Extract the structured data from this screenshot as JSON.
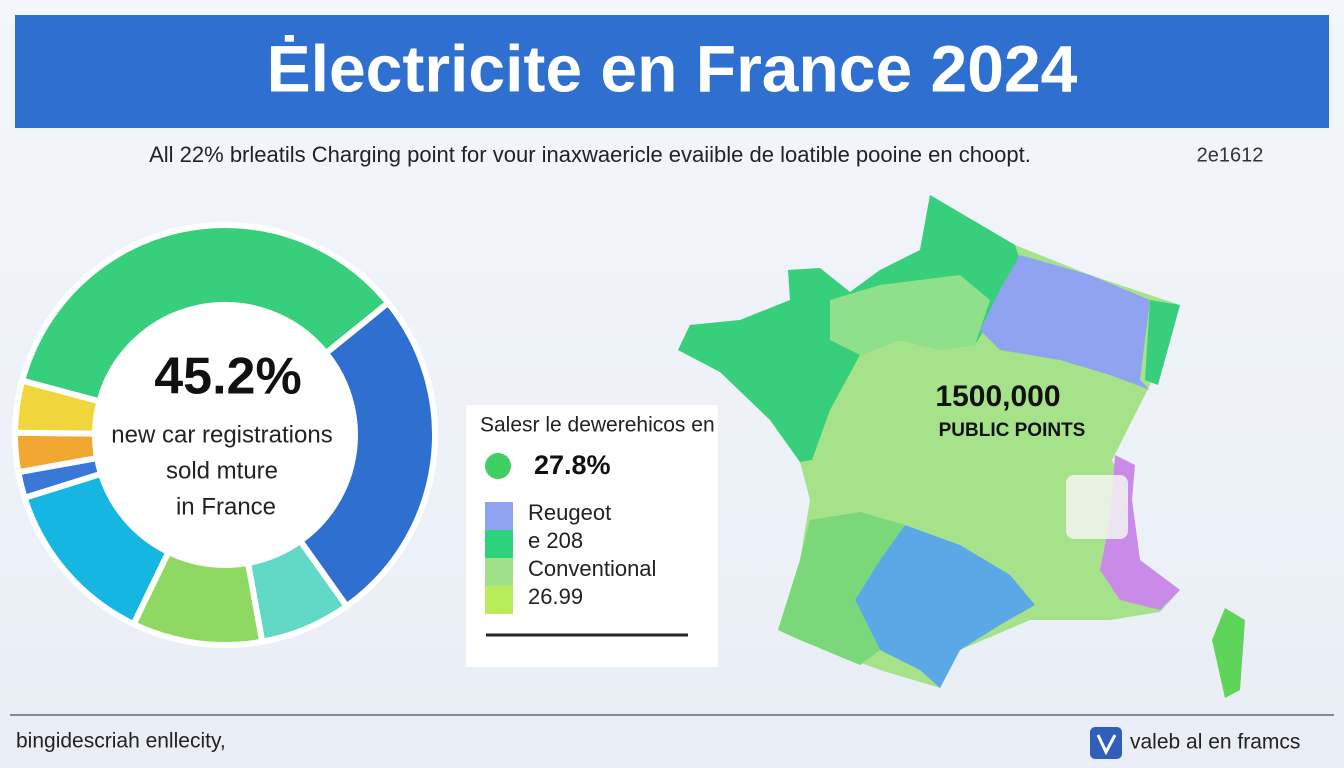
{
  "header": {
    "title": "Ėlectricite en France 2024",
    "subtitle": "All 22% brleatils Charging point for vour inaxwaericle evaiible de loatible pooine en choopt.",
    "subtitle_note": "2e1612"
  },
  "chart_data": {
    "type": "pie",
    "donut": true,
    "center_value": "45.2%",
    "center_label": [
      "new car registrations",
      "sold mture",
      "in France"
    ],
    "categories": [
      null,
      null,
      null,
      null,
      null,
      null,
      null,
      null
    ],
    "values": [
      35,
      26,
      7,
      10,
      13,
      2,
      3,
      4
    ],
    "colors": [
      "#38cf7c",
      "#2f6fd0",
      "#62d8c6",
      "#8fd862",
      "#16b6e2",
      "#3a78d8",
      "#f0a830",
      "#f1d53c"
    ]
  },
  "legend": {
    "title": "Salesr le dewerehicos en",
    "highlight": {
      "color": "#3fcf63",
      "label": "27.8%"
    },
    "items": [
      {
        "color": "#8fa3f0",
        "label": "Reugeot"
      },
      {
        "color": "#2fd27c",
        "label": "e 208"
      },
      {
        "color": "#9fe28a",
        "label": "Conventional"
      },
      {
        "color": "#b8ec58",
        "label": "26.99"
      }
    ]
  },
  "map": {
    "value": "1500,000",
    "label": "PUBLIC POINTS"
  },
  "footer": {
    "left": "bingidescriah enllecity,",
    "right": "valeb al en framcs"
  }
}
